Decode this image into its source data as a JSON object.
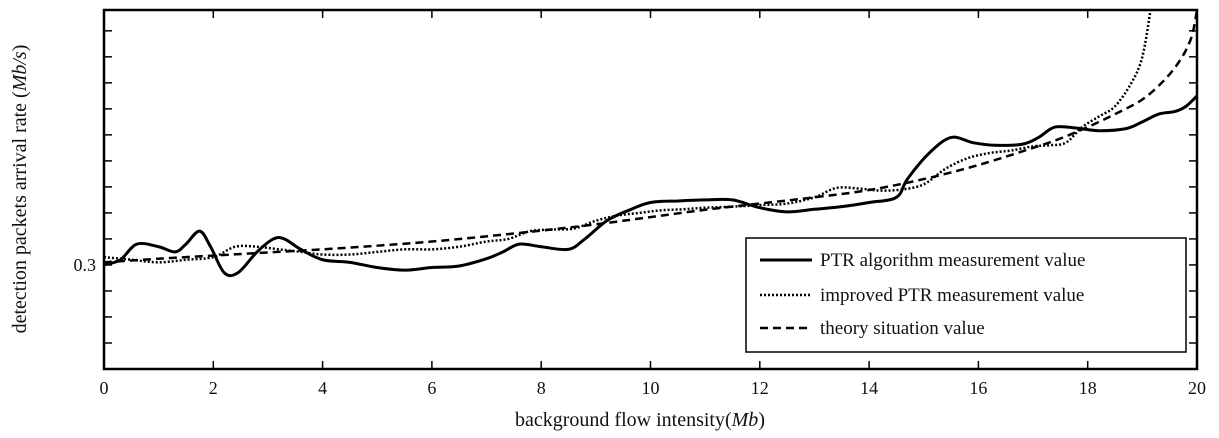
{
  "chart_data": {
    "type": "line",
    "title": "",
    "xlabel_main": "background flow intensity(",
    "xlabel_unit": "Mb",
    "xlabel_close": ")",
    "ylabel_main": "detection packets arrival rate (",
    "ylabel_unit": "Mb/s",
    "ylabel_close": ")",
    "xlim": [
      0,
      20
    ],
    "ylim": [
      0.28,
      0.349
    ],
    "x_ticks": [
      0,
      2,
      4,
      6,
      8,
      10,
      12,
      14,
      16,
      18,
      20
    ],
    "x_tick_labels": [
      "0",
      "2",
      "4",
      "6",
      "8",
      "10",
      "12",
      "14",
      "16",
      "18",
      "20"
    ],
    "y_ticks": [
      0.3
    ],
    "y_tick_labels": [
      "0.3"
    ],
    "grid": false,
    "legend_position": "bottom-right",
    "series": [
      {
        "name": "PTR algorithm measurement value",
        "style": "solid",
        "color": "#000000",
        "x": [
          0,
          0.3,
          0.6,
          1.0,
          1.3,
          1.5,
          1.75,
          1.95,
          2.2,
          2.45,
          2.8,
          3.1,
          3.3,
          3.6,
          4.0,
          4.5,
          5.0,
          5.5,
          6.0,
          6.5,
          7.0,
          7.3,
          7.6,
          8.0,
          8.5,
          8.8,
          9.2,
          9.6,
          10.0,
          10.5,
          11.0,
          11.5,
          12.0,
          12.5,
          13.0,
          13.5,
          14.0,
          14.5,
          14.7,
          15.1,
          15.5,
          15.9,
          16.3,
          16.8,
          17.1,
          17.4,
          17.8,
          18.2,
          18.7,
          19.0,
          19.3,
          19.6,
          19.8,
          20.0
        ],
        "y": [
          0.3,
          0.301,
          0.304,
          0.3035,
          0.3025,
          0.304,
          0.3065,
          0.3035,
          0.2985,
          0.2985,
          0.3025,
          0.305,
          0.305,
          0.303,
          0.301,
          0.3005,
          0.2995,
          0.299,
          0.2995,
          0.2998,
          0.3012,
          0.3025,
          0.304,
          0.3035,
          0.303,
          0.305,
          0.3085,
          0.3105,
          0.312,
          0.3123,
          0.3125,
          0.3125,
          0.311,
          0.3102,
          0.3107,
          0.3112,
          0.312,
          0.313,
          0.3165,
          0.3215,
          0.3245,
          0.3235,
          0.323,
          0.3232,
          0.3245,
          0.3265,
          0.3263,
          0.3258,
          0.3262,
          0.3275,
          0.329,
          0.3295,
          0.3305,
          0.3325
        ]
      },
      {
        "name": "improved PTR measurement value",
        "style": "dotted",
        "color": "#000000",
        "x": [
          0,
          0.5,
          1.0,
          1.5,
          2.0,
          2.4,
          2.8,
          3.2,
          3.6,
          4.0,
          4.5,
          5.0,
          5.5,
          6.0,
          6.5,
          7.0,
          7.4,
          7.8,
          8.2,
          8.6,
          9.0,
          9.4,
          9.8,
          10.2,
          10.6,
          11.0,
          11.5,
          12.0,
          12.5,
          13.0,
          13.4,
          13.8,
          14.2,
          14.6,
          15.0,
          15.4,
          15.8,
          16.2,
          16.6,
          17.0,
          17.3,
          17.6,
          17.9,
          18.2,
          18.5,
          18.8,
          19.0,
          19.15
        ],
        "y": [
          0.3015,
          0.301,
          0.3005,
          0.301,
          0.3015,
          0.3035,
          0.3035,
          0.303,
          0.3025,
          0.302,
          0.302,
          0.3025,
          0.303,
          0.303,
          0.3035,
          0.3045,
          0.305,
          0.3065,
          0.3068,
          0.307,
          0.3085,
          0.3095,
          0.31,
          0.3105,
          0.3107,
          0.311,
          0.3112,
          0.3115,
          0.3118,
          0.313,
          0.3148,
          0.3147,
          0.3143,
          0.3145,
          0.3155,
          0.3185,
          0.3205,
          0.3215,
          0.322,
          0.3228,
          0.323,
          0.3235,
          0.3265,
          0.3285,
          0.3305,
          0.335,
          0.34,
          0.349
        ]
      },
      {
        "name": "theory situation value",
        "style": "dashed",
        "color": "#000000",
        "x": [
          0,
          1,
          2,
          3,
          4,
          5,
          6,
          7,
          8,
          9,
          10,
          11,
          12,
          13,
          14,
          15,
          16,
          17,
          17.5,
          18,
          18.5,
          19,
          19.4,
          19.7,
          19.9,
          20.0
        ],
        "y": [
          0.3005,
          0.3012,
          0.3018,
          0.3024,
          0.303,
          0.3037,
          0.3045,
          0.3055,
          0.3066,
          0.3078,
          0.3092,
          0.3106,
          0.3118,
          0.313,
          0.3144,
          0.3165,
          0.3192,
          0.3225,
          0.3243,
          0.3265,
          0.329,
          0.3318,
          0.3355,
          0.3395,
          0.3438,
          0.349
        ]
      }
    ]
  }
}
